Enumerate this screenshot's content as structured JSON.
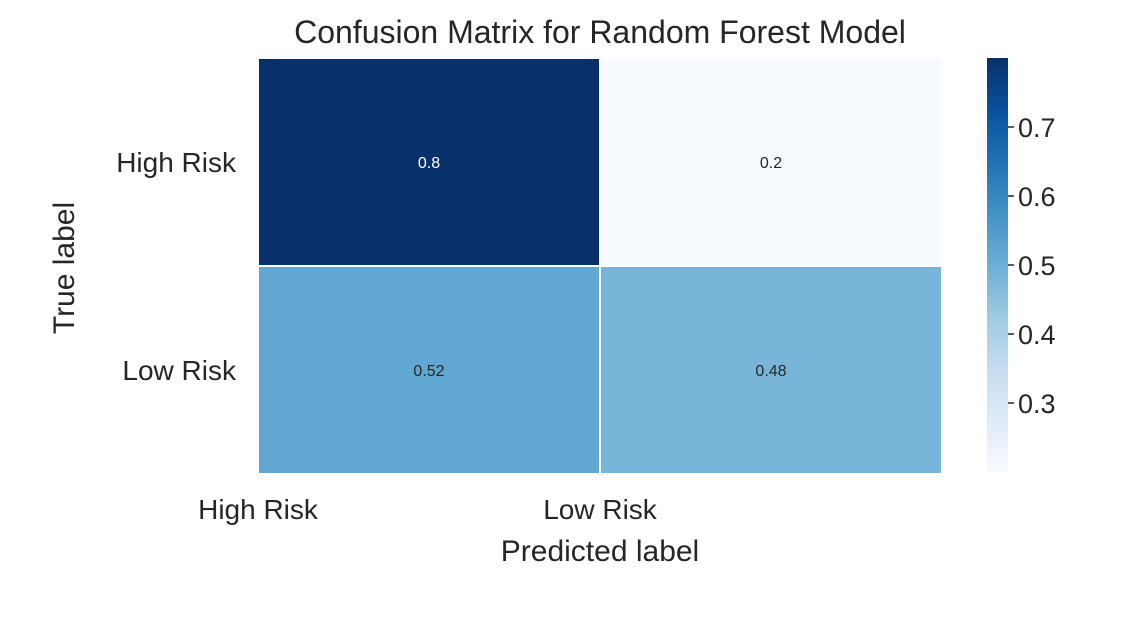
{
  "chart_data": {
    "type": "heatmap",
    "title": "Confusion Matrix for Random Forest Model",
    "xlabel": "Predicted label",
    "ylabel": "True label",
    "x_categories": [
      "High Risk",
      "Low Risk"
    ],
    "y_categories": [
      "High Risk",
      "Low Risk"
    ],
    "values": [
      [
        0.8,
        0.2
      ],
      [
        0.52,
        0.48
      ]
    ],
    "annotations": [
      [
        "0.8",
        "0.2"
      ],
      [
        "0.52",
        "0.48"
      ]
    ],
    "colormap": "Blues",
    "colorbar": {
      "range": [
        0.2,
        0.8
      ],
      "ticks": [
        0.3,
        0.4,
        0.5,
        0.6,
        0.7
      ],
      "tick_labels": [
        "0.3",
        "0.4",
        "0.5",
        "0.6",
        "0.7"
      ]
    },
    "grid": false
  }
}
